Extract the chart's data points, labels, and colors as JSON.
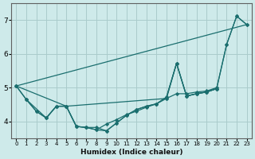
{
  "xlabel": "Humidex (Indice chaleur)",
  "background_color": "#ceeaea",
  "grid_color": "#aacccc",
  "line_color": "#1a6e6e",
  "xlim": [
    -0.5,
    23.5
  ],
  "ylim": [
    3.5,
    7.5
  ],
  "yticks": [
    4,
    5,
    6,
    7
  ],
  "xticks": [
    0,
    1,
    2,
    3,
    4,
    5,
    6,
    7,
    8,
    9,
    10,
    11,
    12,
    13,
    14,
    15,
    16,
    17,
    18,
    19,
    20,
    21,
    22,
    23
  ],
  "series": [
    {
      "x": [
        0,
        1,
        2,
        3,
        4,
        5,
        6,
        7,
        8,
        9,
        10,
        11,
        12,
        13,
        14,
        15,
        16,
        17,
        18,
        19,
        20,
        21,
        22,
        23
      ],
      "y": [
        5.05,
        4.65,
        4.3,
        4.1,
        4.45,
        4.45,
        3.85,
        3.82,
        3.82,
        3.72,
        3.95,
        4.18,
        4.35,
        4.45,
        4.52,
        4.72,
        5.72,
        4.75,
        4.82,
        4.87,
        4.97,
        6.28,
        7.12,
        6.87
      ],
      "marker": "D",
      "lw": 0.9
    },
    {
      "x": [
        0,
        1,
        2,
        3,
        4,
        5,
        6,
        7,
        8,
        9,
        10,
        11,
        12,
        13,
        14,
        15,
        16,
        17,
        18,
        19,
        20
      ],
      "y": [
        5.05,
        4.65,
        4.3,
        4.1,
        4.45,
        4.45,
        3.85,
        3.82,
        3.75,
        3.92,
        4.05,
        4.2,
        4.3,
        4.42,
        4.52,
        4.68,
        4.82,
        4.82,
        4.87,
        4.9,
        5.0
      ],
      "marker": "D",
      "lw": 0.9
    },
    {
      "x": [
        0,
        5,
        15,
        16,
        17,
        18,
        19,
        20,
        21,
        22,
        23
      ],
      "y": [
        5.05,
        4.45,
        4.68,
        5.72,
        4.75,
        4.82,
        4.87,
        4.97,
        6.28,
        7.12,
        6.87
      ],
      "marker": "D",
      "lw": 0.9
    },
    {
      "x": [
        1,
        3,
        4,
        5,
        6,
        7,
        8,
        9,
        10,
        11,
        12,
        13,
        14,
        15,
        16,
        17,
        18,
        19,
        20
      ],
      "y": [
        4.65,
        4.1,
        4.45,
        4.45,
        3.85,
        3.82,
        3.75,
        3.72,
        3.95,
        4.18,
        4.35,
        4.45,
        4.52,
        4.72,
        5.72,
        4.75,
        4.82,
        4.87,
        4.97
      ],
      "marker": "D",
      "lw": 0.9
    },
    {
      "x": [
        0,
        23
      ],
      "y": [
        5.05,
        6.87
      ],
      "marker": null,
      "lw": 0.9
    }
  ]
}
